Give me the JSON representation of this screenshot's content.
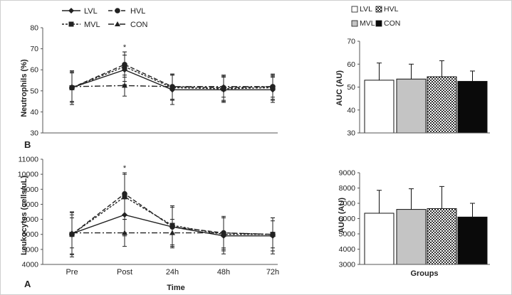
{
  "panels": {
    "top_label": "B",
    "bottom_label": "A"
  },
  "line_legend": [
    {
      "label": "LVL",
      "style": "solid",
      "marker": "diamond"
    },
    {
      "label": "HVL",
      "style": "dash",
      "marker": "circle"
    },
    {
      "label": "MVL",
      "style": "shortdash",
      "marker": "square"
    },
    {
      "label": "CON",
      "style": "dashdot",
      "marker": "triangle"
    }
  ],
  "bar_legend": [
    {
      "label": "LVL",
      "fill": "white"
    },
    {
      "label": "HVL",
      "fill": "checker"
    },
    {
      "label": "MVL",
      "fill": "gray"
    },
    {
      "label": "CON",
      "fill": "black"
    }
  ],
  "colors": {
    "line": "#222222",
    "bar_lvl": "#ffffff",
    "bar_mvl": "#c4c4c4",
    "bar_con": "#0a0a0a",
    "checker": "#333333"
  },
  "chart_data": [
    {
      "id": "neutrophils",
      "type": "line",
      "ylabel": "Neutrophils (%)",
      "ylim": [
        30,
        80
      ],
      "yticks": [
        30,
        40,
        50,
        60,
        70,
        80
      ],
      "categories": [
        "Pre",
        "Post",
        "24h",
        "48h",
        "72h"
      ],
      "annotation": {
        "text": "*",
        "at": "Post"
      },
      "series": [
        {
          "name": "LVL",
          "values": [
            51.5,
            60,
            50.5,
            50.5,
            50.5
          ],
          "err": [
            8,
            7,
            7,
            6,
            6
          ]
        },
        {
          "name": "HVL",
          "values": [
            51.5,
            62.5,
            52,
            51.5,
            52
          ],
          "err": [
            8,
            6,
            6,
            6,
            5
          ]
        },
        {
          "name": "MVL",
          "values": [
            51.5,
            61.5,
            51.5,
            51,
            51.5
          ],
          "err": [
            7,
            7,
            6,
            6,
            6
          ]
        },
        {
          "name": "CON",
          "values": [
            52,
            52.5,
            52,
            52,
            52
          ],
          "err": [
            7,
            5,
            6,
            5,
            6
          ]
        }
      ]
    },
    {
      "id": "neutrophils_auc",
      "type": "bar",
      "ylabel": "AUC (AU)",
      "ylim": [
        30,
        70
      ],
      "yticks": [
        30,
        40,
        50,
        60,
        70
      ],
      "categories": [
        "LVL",
        "MVL",
        "HVL",
        "CON"
      ],
      "values": [
        53,
        53.5,
        54.5,
        52.5
      ],
      "err": [
        7.5,
        6.5,
        7,
        4.5
      ]
    },
    {
      "id": "leukocytes",
      "type": "line",
      "xlabel": "Time",
      "ylabel": "Leukocytes (cells/uL)",
      "ylim": [
        4000,
        11000
      ],
      "yticks": [
        4000,
        5000,
        6000,
        7000,
        8000,
        9000,
        10000,
        11000
      ],
      "categories": [
        "Pre",
        "Post",
        "24h",
        "48h",
        "72h"
      ],
      "annotation": {
        "text": "*",
        "at": "Post"
      },
      "series": [
        {
          "name": "LVL",
          "values": [
            6050,
            7300,
            6500,
            5900,
            5900
          ],
          "err": [
            1400,
            1400,
            1300,
            1200,
            1200
          ]
        },
        {
          "name": "HVL",
          "values": [
            6000,
            8700,
            6500,
            6100,
            6000
          ],
          "err": [
            1500,
            1400,
            1400,
            1100,
            1100
          ]
        },
        {
          "name": "MVL",
          "values": [
            6000,
            8500,
            6600,
            6000,
            6000
          ],
          "err": [
            1300,
            1500,
            1300,
            1100,
            1100
          ]
        },
        {
          "name": "CON",
          "values": [
            6100,
            6100,
            6100,
            6100,
            6000
          ],
          "err": [
            1000,
            900,
            900,
            1000,
            900
          ]
        }
      ]
    },
    {
      "id": "leukocytes_auc",
      "type": "bar",
      "xlabel": "Groups",
      "ylabel": "AUC (AU)",
      "ylim": [
        3000,
        9000
      ],
      "yticks": [
        3000,
        4000,
        5000,
        6000,
        7000,
        8000,
        9000
      ],
      "categories": [
        "LVL",
        "MVL",
        "HVL",
        "CON"
      ],
      "values": [
        6350,
        6600,
        6650,
        6100
      ],
      "err": [
        1500,
        1350,
        1450,
        900
      ]
    }
  ]
}
